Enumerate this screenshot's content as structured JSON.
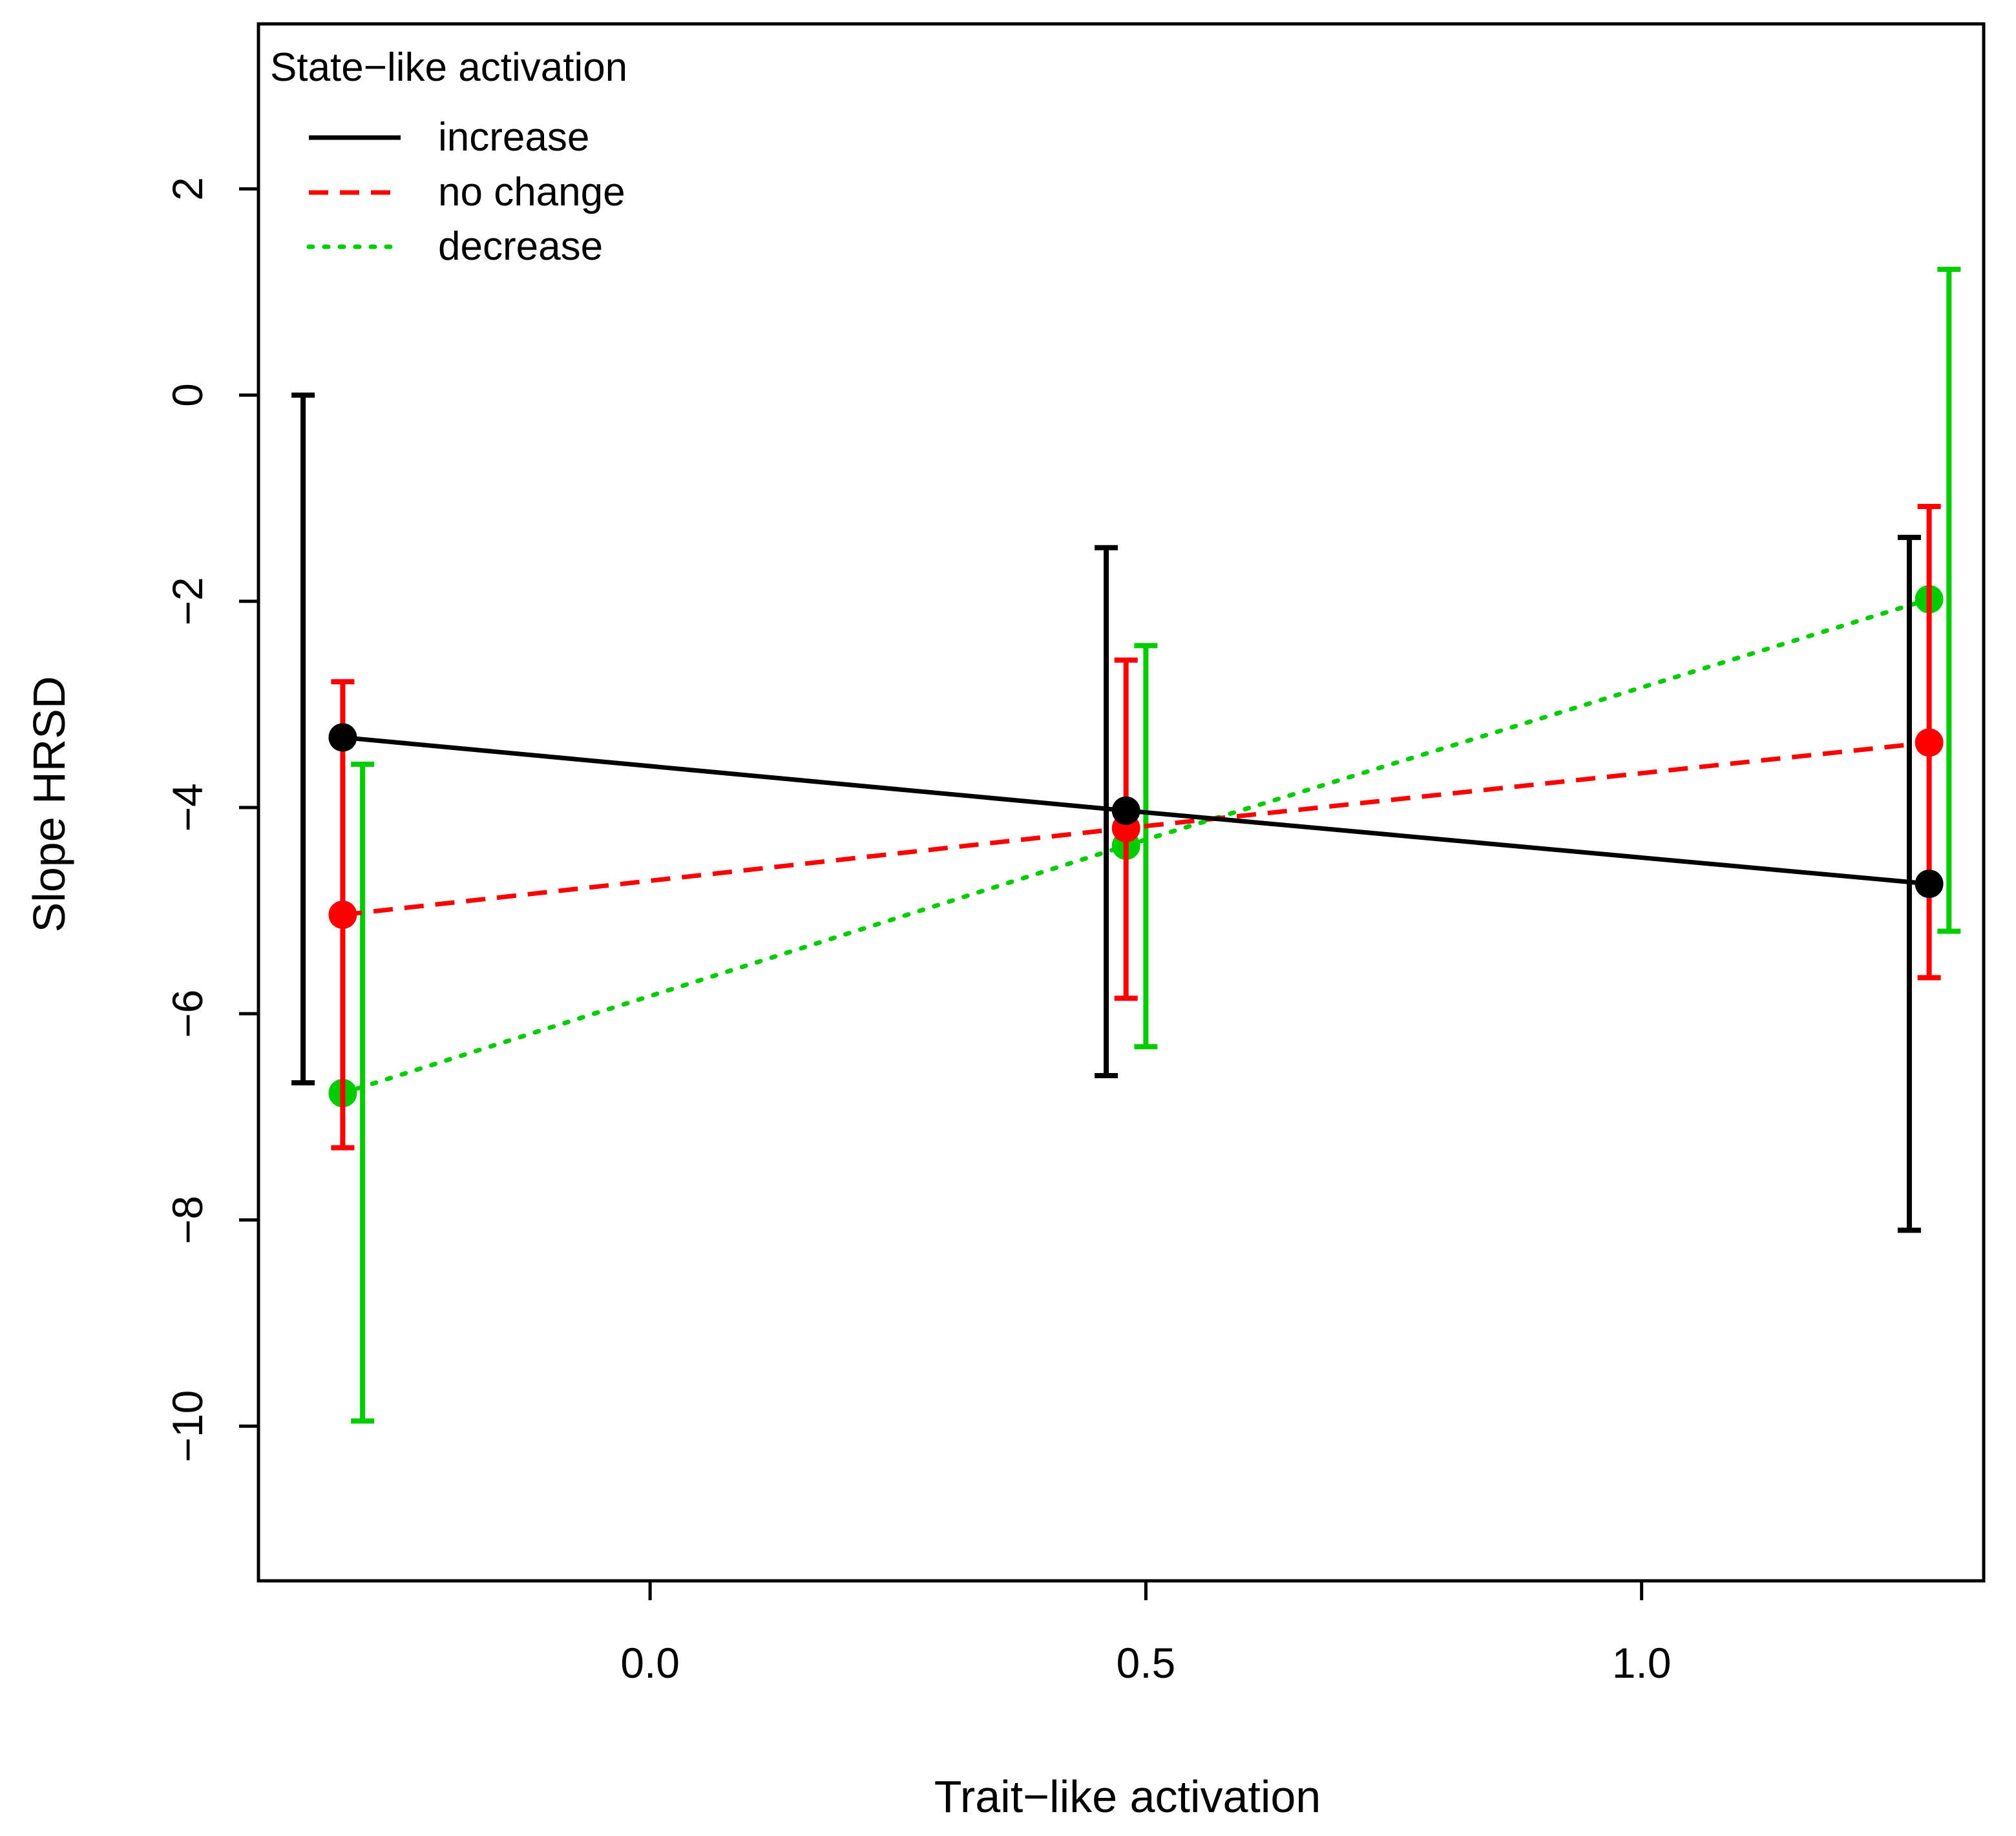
{
  "chart_data": {
    "type": "line",
    "title": "",
    "xlabel": "Trait−like activation",
    "ylabel": "Slope HRSD",
    "xlim": [
      -0.395,
      1.345
    ],
    "ylim": [
      -11.5,
      3.6
    ],
    "x_ticks": [
      0.0,
      0.5,
      1.0
    ],
    "x_tick_labels": [
      "0.0",
      "0.5",
      "1.0"
    ],
    "y_ticks": [
      -10,
      -8,
      -6,
      -4,
      -2,
      0,
      2
    ],
    "y_tick_labels": [
      "−10",
      "−8",
      "−6",
      "−4",
      "−2",
      "0",
      "2"
    ],
    "legend": {
      "title": "State−like activation",
      "position": "top-left"
    },
    "series": [
      {
        "name": "increase",
        "color": "#000000",
        "line_style": "solid",
        "x": [
          -0.31,
          0.48,
          1.29
        ],
        "y": [
          -3.32,
          -4.03,
          -4.74
        ],
        "error_x": [
          -0.35,
          0.46,
          1.27
        ],
        "error_low": [
          -6.67,
          -6.6,
          -8.1
        ],
        "error_high": [
          0.0,
          -1.48,
          -1.38
        ]
      },
      {
        "name": "no change",
        "color": "#ff0000",
        "line_style": "dashed",
        "x": [
          -0.31,
          0.48,
          1.29
        ],
        "y": [
          -5.04,
          -4.2,
          -3.37
        ],
        "error_x": [
          -0.31,
          0.48,
          1.29
        ],
        "error_low": [
          -7.3,
          -5.85,
          -5.65
        ],
        "error_high": [
          -2.78,
          -2.57,
          -1.08
        ]
      },
      {
        "name": "decrease",
        "color": "#00cd00",
        "line_style": "dotted",
        "x": [
          -0.31,
          0.48,
          1.29
        ],
        "y": [
          -6.77,
          -4.37,
          -1.98
        ],
        "error_x": [
          -0.29,
          0.5,
          1.31
        ],
        "error_low": [
          -9.95,
          -6.32,
          -5.2
        ],
        "error_high": [
          -3.58,
          -2.43,
          1.22
        ]
      }
    ]
  }
}
